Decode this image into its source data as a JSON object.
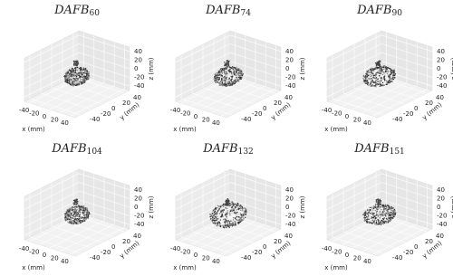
{
  "axes": {
    "x_label": "x (mm)",
    "y_label": "y (mm)",
    "z_label": "z (mm)",
    "xlim": [
      -50,
      50
    ],
    "ylim": [
      -50,
      50
    ],
    "zlim": [
      -50,
      50
    ],
    "xticks": [
      -40,
      -20,
      0,
      20,
      40
    ],
    "yticks": [
      -40,
      -20,
      0,
      20,
      40
    ],
    "zticks": [
      -40,
      -20,
      0,
      20,
      40
    ]
  },
  "panels": [
    {
      "title": "DAFB",
      "subscript": "60"
    },
    {
      "title": "DAFB",
      "subscript": "74"
    },
    {
      "title": "DAFB",
      "subscript": "90"
    },
    {
      "title": "DAFB",
      "subscript": "104"
    },
    {
      "title": "DAFB",
      "subscript": "132"
    },
    {
      "title": "DAFB",
      "subscript": "151"
    }
  ]
}
